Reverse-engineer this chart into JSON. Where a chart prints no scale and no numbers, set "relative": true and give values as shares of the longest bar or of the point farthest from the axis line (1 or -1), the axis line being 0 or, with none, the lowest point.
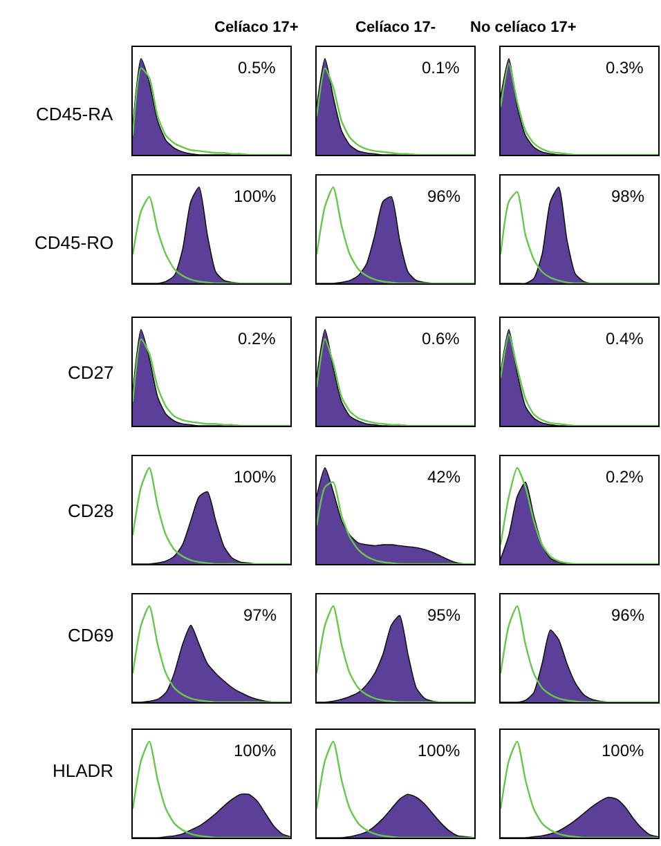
{
  "chart_data": [
    {
      "type": "area",
      "relative": true,
      "title": "Celíaco 17+",
      "ylabel": "CD45-RA",
      "annotations": [
        "0.5%"
      ],
      "categories": [
        null,
        null,
        null,
        null,
        null,
        null,
        null,
        null,
        null,
        null,
        null,
        null,
        null,
        null,
        null,
        null,
        null,
        null,
        null,
        null
      ],
      "series": [
        {
          "color": "#5b3f99",
          "values": [
            0.3,
            1,
            0.75,
            0.35,
            0.15,
            0.07,
            0.03,
            0.01,
            0,
            0,
            0,
            0,
            0,
            0,
            0,
            0,
            0,
            0,
            0,
            0
          ]
        },
        {
          "type": "line",
          "color": "#66c84a",
          "values": [
            0.2,
            0.9,
            0.8,
            0.4,
            0.2,
            0.12,
            0.08,
            0.05,
            0.04,
            0.03,
            0.02,
            0.02,
            0.01,
            0.01,
            0,
            0,
            0,
            0,
            0,
            0
          ]
        }
      ]
    },
    {
      "type": "area",
      "relative": true,
      "title": "Celíaco 17-",
      "annotations": [
        "0.1%"
      ],
      "categories": [
        null,
        null,
        null,
        null,
        null,
        null,
        null,
        null,
        null,
        null,
        null,
        null,
        null,
        null,
        null,
        null,
        null,
        null,
        null,
        null
      ],
      "series": [
        {
          "color": "#5b3f99",
          "values": [
            0.5,
            1,
            0.6,
            0.25,
            0.1,
            0.04,
            0.02,
            0.01,
            0,
            0,
            0,
            0,
            0,
            0,
            0,
            0,
            0,
            0,
            0,
            0
          ]
        },
        {
          "type": "line",
          "color": "#66c84a",
          "values": [
            0.4,
            0.9,
            0.7,
            0.35,
            0.18,
            0.1,
            0.06,
            0.04,
            0.03,
            0.02,
            0.01,
            0.01,
            0,
            0,
            0,
            0,
            0,
            0,
            0,
            0
          ]
        }
      ]
    },
    {
      "type": "area",
      "relative": true,
      "title": "No celíaco 17+",
      "annotations": [
        "0.3%"
      ],
      "categories": [
        null,
        null,
        null,
        null,
        null,
        null,
        null,
        null,
        null,
        null,
        null,
        null,
        null,
        null,
        null,
        null,
        null,
        null,
        null,
        null
      ],
      "series": [
        {
          "color": "#5b3f99",
          "values": [
            0.6,
            1,
            0.5,
            0.2,
            0.08,
            0.03,
            0.01,
            0,
            0,
            0,
            0,
            0,
            0,
            0,
            0,
            0,
            0,
            0,
            0,
            0
          ]
        },
        {
          "type": "line",
          "color": "#66c84a",
          "values": [
            0.5,
            0.95,
            0.55,
            0.25,
            0.12,
            0.06,
            0.03,
            0.02,
            0.01,
            0,
            0,
            0,
            0,
            0,
            0,
            0,
            0,
            0,
            0,
            0
          ]
        }
      ]
    },
    {
      "type": "area",
      "relative": true,
      "ylabel": "CD45-RO",
      "annotations": [
        "100%"
      ],
      "categories": [
        null,
        null,
        null,
        null,
        null,
        null,
        null,
        null,
        null,
        null,
        null,
        null,
        null,
        null,
        null,
        null,
        null,
        null,
        null,
        null
      ],
      "series": [
        {
          "color": "#5b3f99",
          "values": [
            0,
            0,
            0,
            0,
            0.02,
            0.08,
            0.35,
            0.85,
            1,
            0.5,
            0.12,
            0.03,
            0.01,
            0,
            0,
            0,
            0,
            0,
            0,
            0
          ]
        },
        {
          "type": "line",
          "color": "#66c84a",
          "values": [
            0.3,
            0.75,
            0.9,
            0.55,
            0.3,
            0.15,
            0.08,
            0.04,
            0.02,
            0.01,
            0,
            0,
            0,
            0,
            0,
            0,
            0,
            0,
            0,
            0
          ]
        }
      ]
    },
    {
      "type": "area",
      "relative": true,
      "annotations": [
        "96%"
      ],
      "categories": [
        null,
        null,
        null,
        null,
        null,
        null,
        null,
        null,
        null,
        null,
        null,
        null,
        null,
        null,
        null,
        null,
        null,
        null,
        null,
        null
      ],
      "series": [
        {
          "color": "#5b3f99",
          "values": [
            0,
            0,
            0,
            0.01,
            0.03,
            0.08,
            0.2,
            0.5,
            0.85,
            0.9,
            0.45,
            0.12,
            0.03,
            0.01,
            0,
            0,
            0,
            0,
            0,
            0
          ]
        },
        {
          "type": "line",
          "color": "#66c84a",
          "values": [
            0.3,
            0.8,
            1,
            0.6,
            0.3,
            0.15,
            0.08,
            0.04,
            0.02,
            0.01,
            0,
            0,
            0,
            0,
            0,
            0,
            0,
            0,
            0,
            0
          ]
        }
      ]
    },
    {
      "type": "area",
      "relative": true,
      "annotations": [
        "98%"
      ],
      "categories": [
        null,
        null,
        null,
        null,
        null,
        null,
        null,
        null,
        null,
        null,
        null,
        null,
        null,
        null,
        null,
        null,
        null,
        null,
        null,
        null
      ],
      "series": [
        {
          "color": "#5b3f99",
          "values": [
            0,
            0,
            0,
            0,
            0.05,
            0.3,
            0.85,
            1,
            0.45,
            0.1,
            0.02,
            0,
            0,
            0,
            0,
            0,
            0,
            0,
            0,
            0
          ]
        },
        {
          "type": "line",
          "color": "#66c84a",
          "values": [
            0.3,
            0.85,
            0.95,
            0.5,
            0.25,
            0.12,
            0.06,
            0.03,
            0.01,
            0,
            0,
            0,
            0,
            0,
            0,
            0,
            0,
            0,
            0,
            0
          ]
        }
      ]
    },
    {
      "type": "area",
      "relative": true,
      "ylabel": "CD27",
      "annotations": [
        "0.2%"
      ],
      "categories": [
        null,
        null,
        null,
        null,
        null,
        null,
        null,
        null,
        null,
        null,
        null,
        null,
        null,
        null,
        null,
        null,
        null,
        null,
        null,
        null
      ],
      "series": [
        {
          "color": "#5b3f99",
          "values": [
            0.35,
            1,
            0.7,
            0.3,
            0.12,
            0.05,
            0.02,
            0.01,
            0,
            0,
            0,
            0,
            0,
            0,
            0,
            0,
            0,
            0,
            0,
            0
          ]
        },
        {
          "type": "line",
          "color": "#66c84a",
          "values": [
            0.25,
            0.9,
            0.75,
            0.4,
            0.2,
            0.1,
            0.06,
            0.04,
            0.03,
            0.02,
            0.02,
            0.01,
            0.01,
            0,
            0,
            0,
            0,
            0,
            0,
            0
          ]
        }
      ]
    },
    {
      "type": "area",
      "relative": true,
      "annotations": [
        "0.6%"
      ],
      "categories": [
        null,
        null,
        null,
        null,
        null,
        null,
        null,
        null,
        null,
        null,
        null,
        null,
        null,
        null,
        null,
        null,
        null,
        null,
        null,
        null
      ],
      "series": [
        {
          "color": "#5b3f99",
          "values": [
            0.5,
            1,
            0.6,
            0.25,
            0.1,
            0.05,
            0.02,
            0.01,
            0,
            0,
            0,
            0,
            0,
            0,
            0,
            0,
            0,
            0,
            0,
            0
          ]
        },
        {
          "type": "line",
          "color": "#66c84a",
          "values": [
            0.4,
            0.9,
            0.65,
            0.3,
            0.15,
            0.08,
            0.05,
            0.03,
            0.02,
            0.01,
            0.01,
            0,
            0,
            0,
            0,
            0,
            0,
            0,
            0,
            0
          ]
        }
      ]
    },
    {
      "type": "area",
      "relative": true,
      "annotations": [
        "0.4%"
      ],
      "categories": [
        null,
        null,
        null,
        null,
        null,
        null,
        null,
        null,
        null,
        null,
        null,
        null,
        null,
        null,
        null,
        null,
        null,
        null,
        null,
        null
      ],
      "series": [
        {
          "color": "#5b3f99",
          "values": [
            0.55,
            1,
            0.55,
            0.2,
            0.08,
            0.03,
            0.01,
            0,
            0,
            0,
            0,
            0,
            0,
            0,
            0,
            0,
            0,
            0,
            0,
            0
          ]
        },
        {
          "type": "line",
          "color": "#66c84a",
          "values": [
            0.5,
            0.95,
            0.6,
            0.28,
            0.12,
            0.06,
            0.03,
            0.02,
            0.01,
            0,
            0,
            0,
            0,
            0,
            0,
            0,
            0,
            0,
            0,
            0
          ]
        }
      ]
    },
    {
      "type": "area",
      "relative": true,
      "ylabel": "CD28",
      "annotations": [
        "100%"
      ],
      "categories": [
        null,
        null,
        null,
        null,
        null,
        null,
        null,
        null,
        null,
        null,
        null,
        null,
        null,
        null,
        null,
        null,
        null,
        null,
        null,
        null
      ],
      "series": [
        {
          "color": "#5b3f99",
          "values": [
            0,
            0,
            0,
            0.01,
            0.03,
            0.08,
            0.2,
            0.45,
            0.7,
            0.75,
            0.45,
            0.18,
            0.06,
            0.02,
            0.01,
            0,
            0,
            0,
            0,
            0
          ]
        },
        {
          "type": "line",
          "color": "#66c84a",
          "values": [
            0.3,
            0.8,
            1,
            0.6,
            0.3,
            0.15,
            0.08,
            0.04,
            0.02,
            0.01,
            0,
            0,
            0,
            0,
            0,
            0,
            0,
            0,
            0,
            0
          ]
        }
      ]
    },
    {
      "type": "area",
      "relative": true,
      "annotations": [
        "42%"
      ],
      "categories": [
        null,
        null,
        null,
        null,
        null,
        null,
        null,
        null,
        null,
        null,
        null,
        null,
        null,
        null,
        null,
        null,
        null,
        null,
        null,
        null
      ],
      "series": [
        {
          "color": "#5b3f99",
          "values": [
            0.7,
            1,
            0.75,
            0.45,
            0.3,
            0.22,
            0.2,
            0.19,
            0.2,
            0.2,
            0.19,
            0.18,
            0.17,
            0.15,
            0.12,
            0.08,
            0.04,
            0.01,
            0,
            0
          ]
        },
        {
          "type": "line",
          "color": "#66c84a",
          "values": [
            0.4,
            0.8,
            0.85,
            0.5,
            0.28,
            0.15,
            0.08,
            0.04,
            0.02,
            0.01,
            0,
            0,
            0,
            0,
            0,
            0,
            0,
            0,
            0,
            0
          ]
        }
      ]
    },
    {
      "type": "area",
      "relative": true,
      "annotations": [
        "0.2%"
      ],
      "categories": [
        null,
        null,
        null,
        null,
        null,
        null,
        null,
        null,
        null,
        null,
        null,
        null,
        null,
        null,
        null,
        null,
        null,
        null,
        null,
        null
      ],
      "series": [
        {
          "color": "#5b3f99",
          "values": [
            0.05,
            0.3,
            0.7,
            0.85,
            0.5,
            0.2,
            0.06,
            0.02,
            0,
            0,
            0,
            0,
            0,
            0,
            0,
            0,
            0,
            0,
            0,
            0
          ]
        },
        {
          "type": "line",
          "color": "#66c84a",
          "values": [
            0.2,
            0.7,
            1,
            0.8,
            0.45,
            0.2,
            0.08,
            0.03,
            0.01,
            0,
            0,
            0,
            0,
            0,
            0,
            0,
            0,
            0,
            0,
            0
          ]
        }
      ]
    },
    {
      "type": "area",
      "relative": true,
      "ylabel": "CD69",
      "annotations": [
        "97%"
      ],
      "categories": [
        null,
        null,
        null,
        null,
        null,
        null,
        null,
        null,
        null,
        null,
        null,
        null,
        null,
        null,
        null,
        null,
        null,
        null,
        null,
        null
      ],
      "series": [
        {
          "color": "#5b3f99",
          "values": [
            0,
            0,
            0.01,
            0.03,
            0.1,
            0.3,
            0.6,
            0.8,
            0.6,
            0.4,
            0.3,
            0.22,
            0.15,
            0.1,
            0.06,
            0.03,
            0.01,
            0,
            0,
            0
          ]
        },
        {
          "type": "line",
          "color": "#66c84a",
          "values": [
            0.3,
            0.8,
            1,
            0.6,
            0.3,
            0.15,
            0.08,
            0.04,
            0.02,
            0.01,
            0,
            0,
            0,
            0,
            0,
            0,
            0,
            0,
            0,
            0
          ]
        }
      ]
    },
    {
      "type": "area",
      "relative": true,
      "annotations": [
        "95%"
      ],
      "categories": [
        null,
        null,
        null,
        null,
        null,
        null,
        null,
        null,
        null,
        null,
        null,
        null,
        null,
        null,
        null,
        null,
        null,
        null,
        null,
        null
      ],
      "series": [
        {
          "color": "#5b3f99",
          "values": [
            0,
            0,
            0.01,
            0.03,
            0.06,
            0.1,
            0.18,
            0.3,
            0.5,
            0.8,
            0.9,
            0.5,
            0.15,
            0.04,
            0.01,
            0,
            0,
            0,
            0,
            0
          ]
        },
        {
          "type": "line",
          "color": "#66c84a",
          "values": [
            0.3,
            0.8,
            1,
            0.6,
            0.3,
            0.15,
            0.08,
            0.04,
            0.02,
            0.01,
            0,
            0,
            0,
            0,
            0,
            0,
            0,
            0,
            0,
            0
          ]
        }
      ]
    },
    {
      "type": "area",
      "relative": true,
      "annotations": [
        "96%"
      ],
      "categories": [
        null,
        null,
        null,
        null,
        null,
        null,
        null,
        null,
        null,
        null,
        null,
        null,
        null,
        null,
        null,
        null,
        null,
        null,
        null,
        null
      ],
      "series": [
        {
          "color": "#5b3f99",
          "values": [
            0,
            0,
            0,
            0.02,
            0.1,
            0.4,
            0.75,
            0.65,
            0.4,
            0.2,
            0.08,
            0.03,
            0.01,
            0,
            0,
            0,
            0,
            0,
            0,
            0
          ]
        },
        {
          "type": "line",
          "color": "#66c84a",
          "values": [
            0.3,
            0.8,
            1,
            0.6,
            0.3,
            0.15,
            0.08,
            0.04,
            0.02,
            0.01,
            0,
            0,
            0,
            0,
            0,
            0,
            0,
            0,
            0,
            0
          ]
        }
      ]
    },
    {
      "type": "area",
      "relative": true,
      "ylabel": "HLADR",
      "annotations": [
        "100%"
      ],
      "categories": [
        null,
        null,
        null,
        null,
        null,
        null,
        null,
        null,
        null,
        null,
        null,
        null,
        null,
        null,
        null,
        null,
        null,
        null,
        null,
        null
      ],
      "series": [
        {
          "color": "#5b3f99",
          "values": [
            0,
            0,
            0,
            0,
            0.01,
            0.02,
            0.04,
            0.08,
            0.12,
            0.18,
            0.25,
            0.33,
            0.4,
            0.45,
            0.45,
            0.38,
            0.25,
            0.12,
            0.04,
            0.01
          ]
        },
        {
          "type": "line",
          "color": "#66c84a",
          "values": [
            0.3,
            0.8,
            1,
            0.6,
            0.3,
            0.15,
            0.08,
            0.04,
            0.02,
            0.01,
            0,
            0,
            0,
            0,
            0,
            0,
            0,
            0,
            0,
            0
          ]
        }
      ]
    },
    {
      "type": "area",
      "relative": true,
      "annotations": [
        "100%"
      ],
      "categories": [
        null,
        null,
        null,
        null,
        null,
        null,
        null,
        null,
        null,
        null,
        null,
        null,
        null,
        null,
        null,
        null,
        null,
        null,
        null,
        null
      ],
      "series": [
        {
          "color": "#5b3f99",
          "values": [
            0,
            0,
            0,
            0,
            0.01,
            0.03,
            0.06,
            0.12,
            0.2,
            0.3,
            0.4,
            0.45,
            0.42,
            0.35,
            0.25,
            0.15,
            0.07,
            0.02,
            0.01,
            0
          ]
        },
        {
          "type": "line",
          "color": "#66c84a",
          "values": [
            0.3,
            0.8,
            1,
            0.6,
            0.3,
            0.15,
            0.08,
            0.04,
            0.02,
            0.01,
            0,
            0,
            0,
            0,
            0,
            0,
            0,
            0,
            0,
            0
          ]
        }
      ]
    },
    {
      "type": "area",
      "relative": true,
      "annotations": [
        "100%"
      ],
      "categories": [
        null,
        null,
        null,
        null,
        null,
        null,
        null,
        null,
        null,
        null,
        null,
        null,
        null,
        null,
        null,
        null,
        null,
        null,
        null,
        null
      ],
      "series": [
        {
          "color": "#5b3f99",
          "values": [
            0,
            0,
            0,
            0,
            0.01,
            0.02,
            0.04,
            0.07,
            0.12,
            0.18,
            0.25,
            0.32,
            0.38,
            0.42,
            0.4,
            0.32,
            0.2,
            0.1,
            0.03,
            0.01
          ]
        },
        {
          "type": "line",
          "color": "#66c84a",
          "values": [
            0.3,
            0.8,
            1,
            0.6,
            0.3,
            0.15,
            0.08,
            0.04,
            0.02,
            0.01,
            0,
            0,
            0,
            0,
            0,
            0,
            0,
            0,
            0,
            0
          ]
        }
      ]
    }
  ]
}
